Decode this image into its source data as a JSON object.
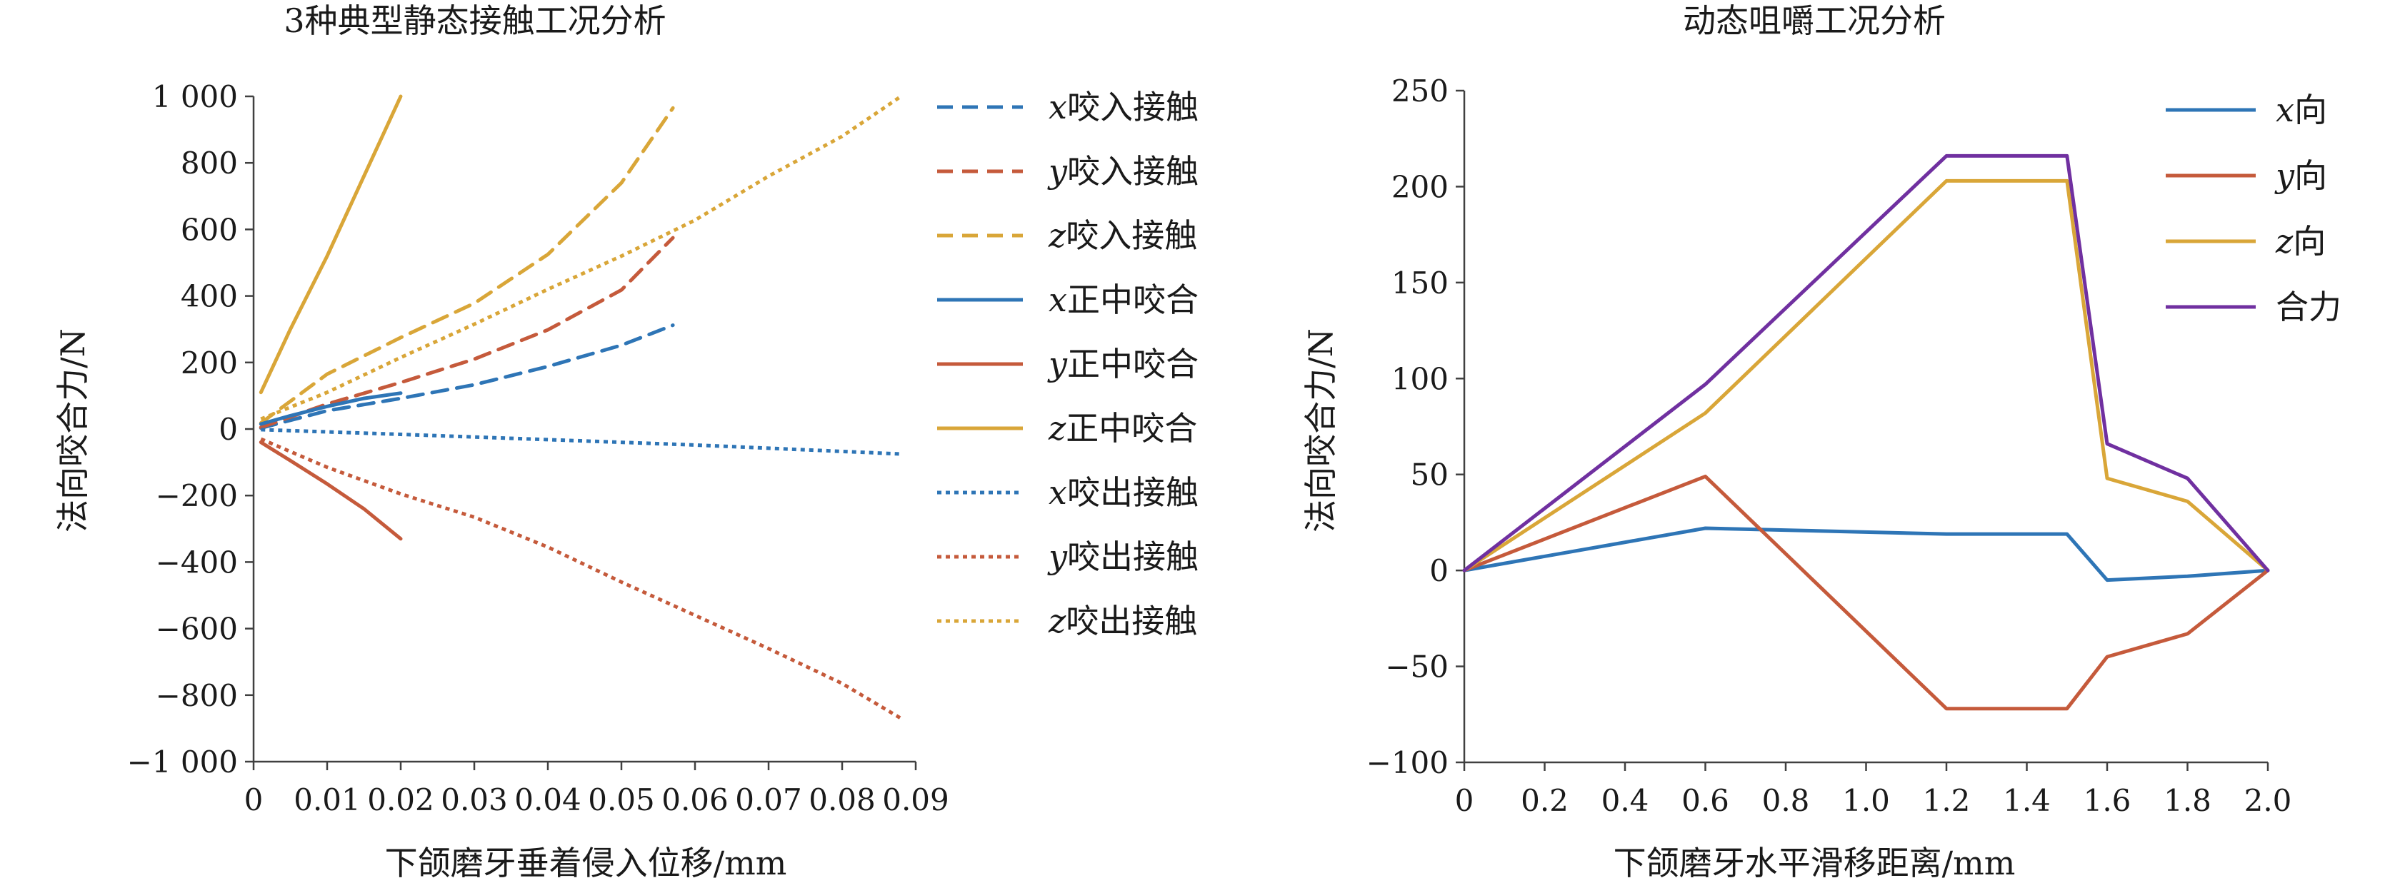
{
  "chart_data": [
    {
      "type": "line",
      "title": "3种典型静态接触工况分析",
      "xlabel": "下颌磨牙垂着侵入位移/mm",
      "ylabel": "法向咬合力/N",
      "xlim": [
        0,
        0.09
      ],
      "ylim": [
        -1000,
        1000
      ],
      "xticks": [
        0,
        0.01,
        0.02,
        0.03,
        0.04,
        0.05,
        0.06,
        0.07,
        0.08,
        0.09
      ],
      "xtick_labels": [
        "0",
        "0.01",
        "0.02",
        "0.03",
        "0.04",
        "0.05",
        "0.06",
        "0.07",
        "0.08",
        "0.09"
      ],
      "yticks": [
        1000,
        800,
        600,
        400,
        200,
        0,
        -200,
        -400,
        -600,
        -800,
        -1000
      ],
      "ytick_labels": [
        "1 000",
        "800",
        "600",
        "400",
        "200",
        "0",
        "−200",
        "−400",
        "−600",
        "−800",
        "−1 000"
      ],
      "grid": false,
      "legend_position": "right",
      "series": [
        {
          "name": "x咬入接触",
          "var": "x",
          "suffix": "咬入接触",
          "style": "dashed",
          "color": "#2E75B6",
          "points": [
            [
              0.001,
              3
            ],
            [
              0.01,
              55
            ],
            [
              0.02,
              92
            ],
            [
              0.03,
              133
            ],
            [
              0.04,
              188
            ],
            [
              0.05,
              252
            ],
            [
              0.057,
              312
            ]
          ]
        },
        {
          "name": "y咬入接触",
          "var": "y",
          "suffix": "咬入接触",
          "style": "dashed",
          "color": "#C55A3B",
          "points": [
            [
              0.001,
              5
            ],
            [
              0.01,
              75
            ],
            [
              0.02,
              140
            ],
            [
              0.03,
              210
            ],
            [
              0.04,
              298
            ],
            [
              0.05,
              418
            ],
            [
              0.057,
              575
            ]
          ]
        },
        {
          "name": "z咬入接触",
          "var": "z",
          "suffix": "咬入接触",
          "style": "dashed",
          "color": "#D9A638",
          "points": [
            [
              0.001,
              18
            ],
            [
              0.01,
              165
            ],
            [
              0.02,
              275
            ],
            [
              0.03,
              378
            ],
            [
              0.04,
              525
            ],
            [
              0.05,
              740
            ],
            [
              0.057,
              965
            ]
          ]
        },
        {
          "name": "x正中咬合",
          "var": "x",
          "suffix": "正中咬合",
          "style": "solid",
          "color": "#2E75B6",
          "points": [
            [
              0.001,
              15
            ],
            [
              0.005,
              40
            ],
            [
              0.01,
              68
            ],
            [
              0.015,
              92
            ],
            [
              0.02,
              108
            ]
          ]
        },
        {
          "name": "y正中咬合",
          "var": "y",
          "suffix": "正中咬合",
          "style": "solid",
          "color": "#C55A3B",
          "points": [
            [
              0.001,
              -40
            ],
            [
              0.005,
              -95
            ],
            [
              0.01,
              -165
            ],
            [
              0.015,
              -240
            ],
            [
              0.02,
              -330
            ]
          ]
        },
        {
          "name": "z正中咬合",
          "var": "z",
          "suffix": "正中咬合",
          "style": "solid",
          "color": "#D9A638",
          "points": [
            [
              0.001,
              110
            ],
            [
              0.005,
              300
            ],
            [
              0.01,
              520
            ],
            [
              0.015,
              760
            ],
            [
              0.02,
              1000
            ]
          ]
        },
        {
          "name": "x咬出接触",
          "var": "x",
          "suffix": "咬出接触",
          "style": "dotted",
          "color": "#2E75B6",
          "points": [
            [
              0.001,
              -2
            ],
            [
              0.02,
              -16
            ],
            [
              0.04,
              -32
            ],
            [
              0.06,
              -48
            ],
            [
              0.088,
              -75
            ]
          ]
        },
        {
          "name": "y咬出接触",
          "var": "y",
          "suffix": "咬出接触",
          "style": "dotted",
          "color": "#C55A3B",
          "points": [
            [
              0.001,
              -30
            ],
            [
              0.01,
              -115
            ],
            [
              0.02,
              -195
            ],
            [
              0.03,
              -265
            ],
            [
              0.04,
              -355
            ],
            [
              0.05,
              -460
            ],
            [
              0.06,
              -560
            ],
            [
              0.07,
              -660
            ],
            [
              0.08,
              -765
            ],
            [
              0.088,
              -870
            ]
          ]
        },
        {
          "name": "z咬出接触",
          "var": "z",
          "suffix": "咬出接触",
          "style": "dotted",
          "color": "#D9A638",
          "points": [
            [
              0.001,
              30
            ],
            [
              0.01,
              110
            ],
            [
              0.02,
              215
            ],
            [
              0.03,
              315
            ],
            [
              0.04,
              420
            ],
            [
              0.05,
              520
            ],
            [
              0.06,
              628
            ],
            [
              0.07,
              760
            ],
            [
              0.08,
              880
            ],
            [
              0.088,
              1000
            ]
          ]
        }
      ]
    },
    {
      "type": "line",
      "title": "动态咀嚼工况分析",
      "xlabel": "下颌磨牙水平滑移距离/mm",
      "ylabel": "法向咬合力/N",
      "xlim": [
        0,
        2.0
      ],
      "ylim": [
        -100,
        250
      ],
      "xticks": [
        0,
        0.2,
        0.4,
        0.6,
        0.8,
        1.0,
        1.2,
        1.4,
        1.6,
        1.8,
        2.0
      ],
      "xtick_labels": [
        "0",
        "0.2",
        "0.4",
        "0.6",
        "0.8",
        "1.0",
        "1.2",
        "1.4",
        "1.6",
        "1.8",
        "2.0"
      ],
      "yticks": [
        250,
        200,
        150,
        100,
        50,
        0,
        -50,
        -100
      ],
      "ytick_labels": [
        "250",
        "200",
        "150",
        "100",
        "50",
        "0",
        "−50",
        "−100"
      ],
      "grid": false,
      "legend_position": "top-right",
      "series": [
        {
          "name": "x向",
          "var": "x",
          "suffix": "向",
          "style": "solid",
          "color": "#2E75B6",
          "points": [
            [
              0,
              0
            ],
            [
              0.6,
              22
            ],
            [
              1.2,
              19
            ],
            [
              1.5,
              19
            ],
            [
              1.6,
              -5
            ],
            [
              1.8,
              -3
            ],
            [
              2.0,
              0
            ]
          ]
        },
        {
          "name": "y向",
          "var": "y",
          "suffix": "向",
          "style": "solid",
          "color": "#C55A3B",
          "points": [
            [
              0,
              0
            ],
            [
              0.6,
              49
            ],
            [
              1.2,
              -72
            ],
            [
              1.5,
              -72
            ],
            [
              1.6,
              -45
            ],
            [
              1.8,
              -33
            ],
            [
              2.0,
              0
            ]
          ]
        },
        {
          "name": "z向",
          "var": "z",
          "suffix": "向",
          "style": "solid",
          "color": "#D9A638",
          "points": [
            [
              0,
              0
            ],
            [
              0.6,
              82
            ],
            [
              1.2,
              203
            ],
            [
              1.5,
              203
            ],
            [
              1.6,
              48
            ],
            [
              1.8,
              36
            ],
            [
              2.0,
              0
            ]
          ]
        },
        {
          "name": "合力",
          "var": "",
          "suffix": "合力",
          "style": "solid",
          "color": "#7030A0",
          "points": [
            [
              0,
              0
            ],
            [
              0.6,
              97
            ],
            [
              1.2,
              216
            ],
            [
              1.5,
              216
            ],
            [
              1.6,
              66
            ],
            [
              1.8,
              48
            ],
            [
              2.0,
              0
            ]
          ]
        }
      ]
    }
  ]
}
